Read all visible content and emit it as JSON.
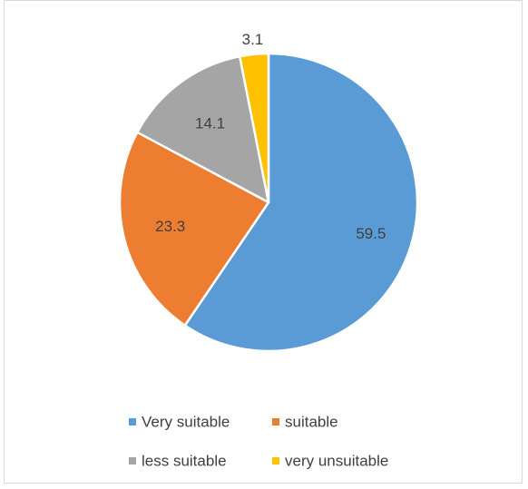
{
  "chart_data": {
    "type": "pie",
    "categories": [
      "Very suitable",
      "suitable",
      "less suitable",
      "very unsuitable"
    ],
    "values": [
      59.5,
      23.3,
      14.1,
      3.1
    ],
    "data_labels": [
      "59.5",
      "23.3",
      "14.1",
      "3.1"
    ],
    "colors": [
      "#5b9bd5",
      "#ed7d31",
      "#a5a5a5",
      "#ffc000"
    ],
    "title": "",
    "legend_position": "bottom",
    "start_angle_deg": 0,
    "direction": "clockwise"
  }
}
